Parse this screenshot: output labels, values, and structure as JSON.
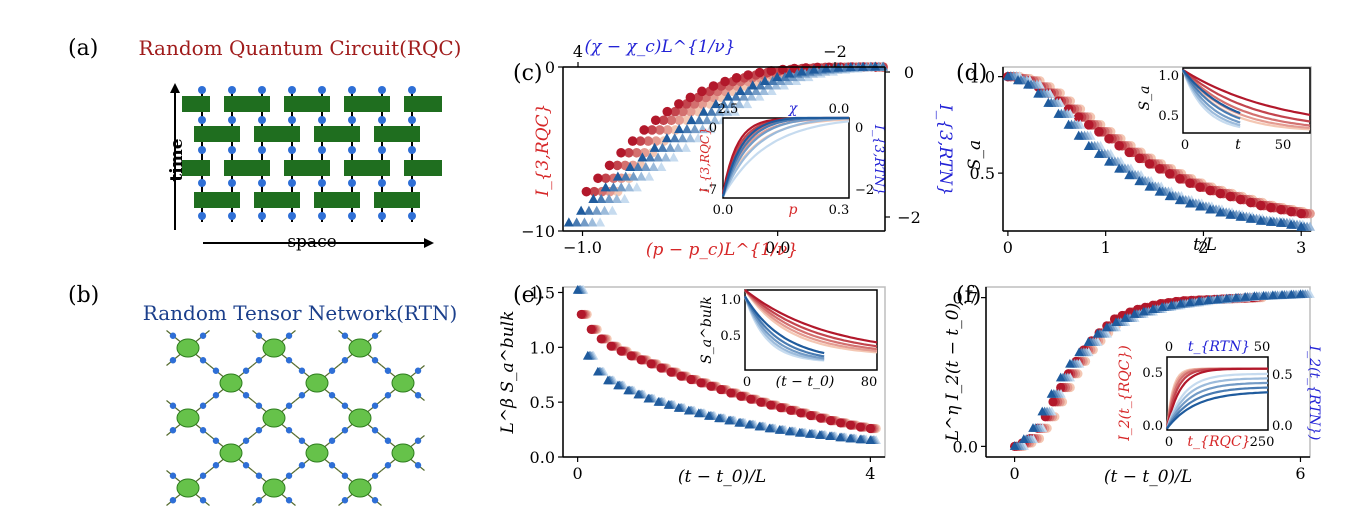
{
  "colors": {
    "rqc_dark": "#b2182b",
    "rqc_light": "#f4c7b3",
    "rtn_dark": "#1f5b9d",
    "rtn_light": "#c6dbef",
    "red_label": "#d62728",
    "blue_label": "#2323d6",
    "circuit_green": "#1f6e1f",
    "qubit_blue": "#2f6fd6",
    "node_green": "#66c24a",
    "node_edge": "#2e7d1e",
    "title_red": "#a01c1c",
    "title_blue": "#1b3f8b"
  },
  "panels": {
    "a": {
      "label": "(a)",
      "title": "Random Quantum Circuit(RQC)",
      "time_label": "time",
      "space_label": "space"
    },
    "b": {
      "label": "(b)",
      "title": "Random Tensor Network(RTN)"
    },
    "c": {
      "label": "(c)"
    },
    "d": {
      "label": "(d)"
    },
    "e": {
      "label": "(e)"
    },
    "f": {
      "label": "(f)"
    }
  },
  "chart_data": [
    {
      "id": "c",
      "type": "scatter",
      "xlabel": "(p − p_c)L^{1/ν}",
      "xlabel_top": "(χ − χ_c)L^{1/ν}",
      "ylabel": "I_{3,RQC}",
      "ylabel_right": "I_{3,RTN}",
      "xlim": [
        -1.1,
        0.55
      ],
      "ylim": [
        -10,
        0
      ],
      "xticks": [
        "−1.0",
        "0.0"
      ],
      "yticks": [
        "−10",
        "0"
      ],
      "top_ticks": [
        "4",
        "−2"
      ],
      "right_ticks": [
        "0",
        "−2"
      ],
      "series": [
        {
          "group": "RQC",
          "marker": "circle",
          "x": [
            -0.98,
            -0.9,
            -0.8,
            -0.7,
            -0.6,
            -0.5,
            -0.4,
            -0.3,
            -0.2,
            -0.1,
            0.0,
            0.1,
            0.2,
            0.3,
            0.4,
            0.5
          ],
          "y": [
            -7.6,
            -6.5,
            -5.2,
            -4.0,
            -3.0,
            -2.2,
            -1.55,
            -1.0,
            -0.62,
            -0.35,
            -0.18,
            -0.08,
            -0.03,
            -0.01,
            0.0,
            0.0
          ]
        },
        {
          "group": "RTN",
          "marker": "triangle",
          "x": [
            -1.07,
            -0.85,
            -0.7,
            -0.55,
            -0.4,
            -0.25,
            -0.1,
            0.05,
            0.2,
            0.35,
            0.5
          ],
          "y": [
            -9.5,
            -7.0,
            -5.6,
            -4.2,
            -2.9,
            -1.8,
            -1.0,
            -0.45,
            -0.15,
            -0.03,
            0.0
          ]
        }
      ],
      "inset": {
        "xlabel": "p",
        "xlabel_top": "χ",
        "ylabel": "I_{3,RQC}",
        "ylabel_right": "I_{3,RTN}",
        "xticks": [
          "0.0",
          "0.3"
        ],
        "top_ticks": [
          "2.5",
          "0.0"
        ],
        "yticks": [
          "−7",
          "0"
        ],
        "right_ticks": [
          "0",
          "−2"
        ]
      }
    },
    {
      "id": "d",
      "type": "scatter",
      "xlabel": "t/L",
      "ylabel": "S_a",
      "xlim": [
        -0.05,
        3.1
      ],
      "ylim": [
        0.2,
        1.05
      ],
      "xticks": [
        "0",
        "1",
        "2",
        "3"
      ],
      "yticks": [
        "0.5",
        "1.0"
      ],
      "series": [
        {
          "group": "RQC",
          "marker": "circle",
          "x": [
            0,
            0.2,
            0.4,
            0.6,
            0.8,
            1.0,
            1.2,
            1.4,
            1.6,
            1.8,
            2.0,
            2.2,
            2.4,
            2.6,
            2.8,
            3.0
          ],
          "y": [
            1.0,
            0.98,
            0.92,
            0.84,
            0.76,
            0.69,
            0.62,
            0.56,
            0.51,
            0.46,
            0.42,
            0.39,
            0.36,
            0.33,
            0.31,
            0.29
          ]
        },
        {
          "group": "RTN",
          "marker": "triangle",
          "x": [
            0,
            0.2,
            0.4,
            0.6,
            0.8,
            1.0,
            1.2,
            1.4,
            1.6,
            1.8,
            2.0,
            2.2,
            2.4,
            2.6,
            2.8,
            3.0
          ],
          "y": [
            1.0,
            0.96,
            0.87,
            0.76,
            0.65,
            0.57,
            0.5,
            0.44,
            0.39,
            0.35,
            0.32,
            0.29,
            0.27,
            0.25,
            0.24,
            0.22
          ]
        }
      ],
      "inset": {
        "xlabel": "t",
        "ylabel": "S_a",
        "xticks": [
          "0",
          "50"
        ],
        "yticks": [
          "0.5",
          "1.0"
        ]
      }
    },
    {
      "id": "e",
      "type": "scatter",
      "xlabel": "(t − t_0)/L",
      "ylabel": "L^β S_a^bulk",
      "xlim": [
        -0.2,
        4.2
      ],
      "ylim": [
        0.0,
        1.55
      ],
      "xticks": [
        "0",
        "4"
      ],
      "yticks": [
        "0.0",
        "0.5",
        "1.0",
        "1.5"
      ],
      "series": [
        {
          "group": "RQC",
          "marker": "circle",
          "x": [
            0.05,
            0.2,
            0.4,
            0.7,
            1.0,
            1.4,
            1.8,
            2.2,
            2.6,
            3.0,
            3.4,
            3.8,
            4.0
          ],
          "y": [
            1.3,
            1.15,
            1.03,
            0.93,
            0.85,
            0.74,
            0.65,
            0.56,
            0.48,
            0.41,
            0.34,
            0.28,
            0.26
          ]
        },
        {
          "group": "RTN",
          "marker": "triangle",
          "x": [
            0.0,
            0.1,
            0.2,
            0.4,
            0.7,
            1.0,
            1.4,
            1.8,
            2.2,
            2.6,
            3.0,
            3.4,
            3.8,
            4.0
          ],
          "y": [
            1.52,
            0.98,
            0.82,
            0.7,
            0.6,
            0.52,
            0.44,
            0.37,
            0.31,
            0.26,
            0.22,
            0.19,
            0.16,
            0.15
          ]
        }
      ],
      "inset": {
        "xlabel": "(t − t_0)",
        "ylabel": "S_a^bulk",
        "xticks": [
          "0",
          "80"
        ],
        "yticks": [
          "0.5",
          "1.0"
        ]
      }
    },
    {
      "id": "f",
      "type": "scatter",
      "xlabel": "(t − t_0)/L",
      "ylabel": "L^η I_2(t − t_0)",
      "xlim": [
        -0.6,
        6.2
      ],
      "ylim": [
        -0.05,
        0.75
      ],
      "xticks": [
        "0",
        "6"
      ],
      "yticks": [
        "0.0",
        "0.7"
      ],
      "series": [
        {
          "group": "RQC",
          "marker": "circle",
          "x": [
            0,
            0.3,
            0.6,
            0.9,
            1.2,
            1.5,
            1.8,
            2.1,
            2.5,
            3.0,
            3.5,
            4.0,
            4.5,
            5.0
          ],
          "y": [
            0.0,
            0.03,
            0.12,
            0.25,
            0.37,
            0.47,
            0.54,
            0.6,
            0.64,
            0.67,
            0.685,
            0.69,
            0.695,
            0.7
          ]
        },
        {
          "group": "RTN",
          "marker": "triangle",
          "x": [
            0,
            0.3,
            0.6,
            0.9,
            1.2,
            1.5,
            1.8,
            2.1,
            2.5,
            3.0,
            3.5,
            4.0,
            4.5,
            5.0,
            5.5,
            6.0
          ],
          "y": [
            0.0,
            0.05,
            0.17,
            0.3,
            0.4,
            0.48,
            0.54,
            0.58,
            0.62,
            0.65,
            0.67,
            0.685,
            0.695,
            0.705,
            0.71,
            0.715
          ]
        }
      ],
      "inset": {
        "xlabel": "t_{RQC}",
        "xlabel_top": "t_{RTN}",
        "ylabel": "I_2(t_{RQC})",
        "ylabel_right": "I_2(t_{RTN})",
        "xticks": [
          "0",
          "250"
        ],
        "top_ticks": [
          "0",
          "50"
        ],
        "yticks": [
          "0.0",
          "0.5"
        ],
        "right_ticks": [
          "0.0",
          "0.5"
        ]
      }
    }
  ]
}
